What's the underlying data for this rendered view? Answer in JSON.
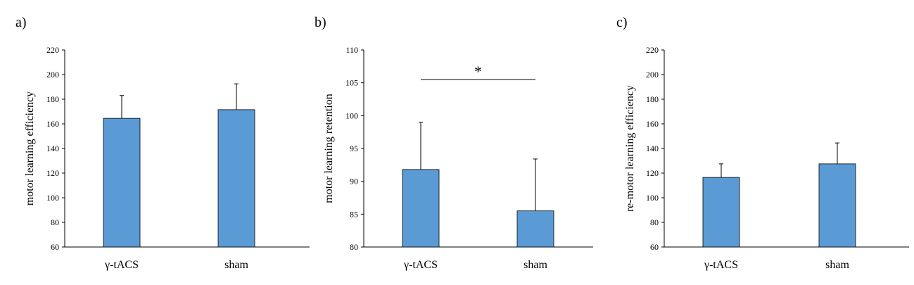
{
  "figure": {
    "background": "#ffffff",
    "bar_color": "#5b9bd5",
    "bar_edge_color": "#000000",
    "axis_color": "#000000"
  },
  "chart_data": [
    {
      "type": "bar",
      "panel_label": "a)",
      "categories": [
        "γ-tACS",
        "sham"
      ],
      "values": [
        164.5,
        171.5
      ],
      "error_plus": [
        18.5,
        21.0
      ],
      "xlabel": "",
      "ylabel": "motor learning efficiency",
      "ylim": [
        60,
        220
      ],
      "yticks": [
        60,
        80,
        100,
        120,
        140,
        160,
        180,
        200,
        220
      ],
      "grid": false,
      "significance": null
    },
    {
      "type": "bar",
      "panel_label": "b)",
      "categories": [
        "γ-tACS",
        "sham"
      ],
      "values": [
        91.8,
        85.5
      ],
      "error_plus": [
        7.2,
        7.9
      ],
      "xlabel": "",
      "ylabel": "motor learning retention",
      "ylim": [
        80,
        110
      ],
      "yticks": [
        80,
        85,
        90,
        95,
        100,
        105,
        110
      ],
      "grid": false,
      "significance": {
        "label": "*",
        "between": [
          0,
          1
        ],
        "level": 105.5
      }
    },
    {
      "type": "bar",
      "panel_label": "c)",
      "categories": [
        "γ-tACS",
        "sham"
      ],
      "values": [
        116.5,
        127.5
      ],
      "error_plus": [
        11.0,
        17.0
      ],
      "xlabel": "",
      "ylabel": "re-motor learning efficiency",
      "ylim": [
        60,
        220
      ],
      "yticks": [
        60,
        80,
        100,
        120,
        140,
        160,
        180,
        200,
        220
      ],
      "grid": false,
      "significance": null
    }
  ]
}
